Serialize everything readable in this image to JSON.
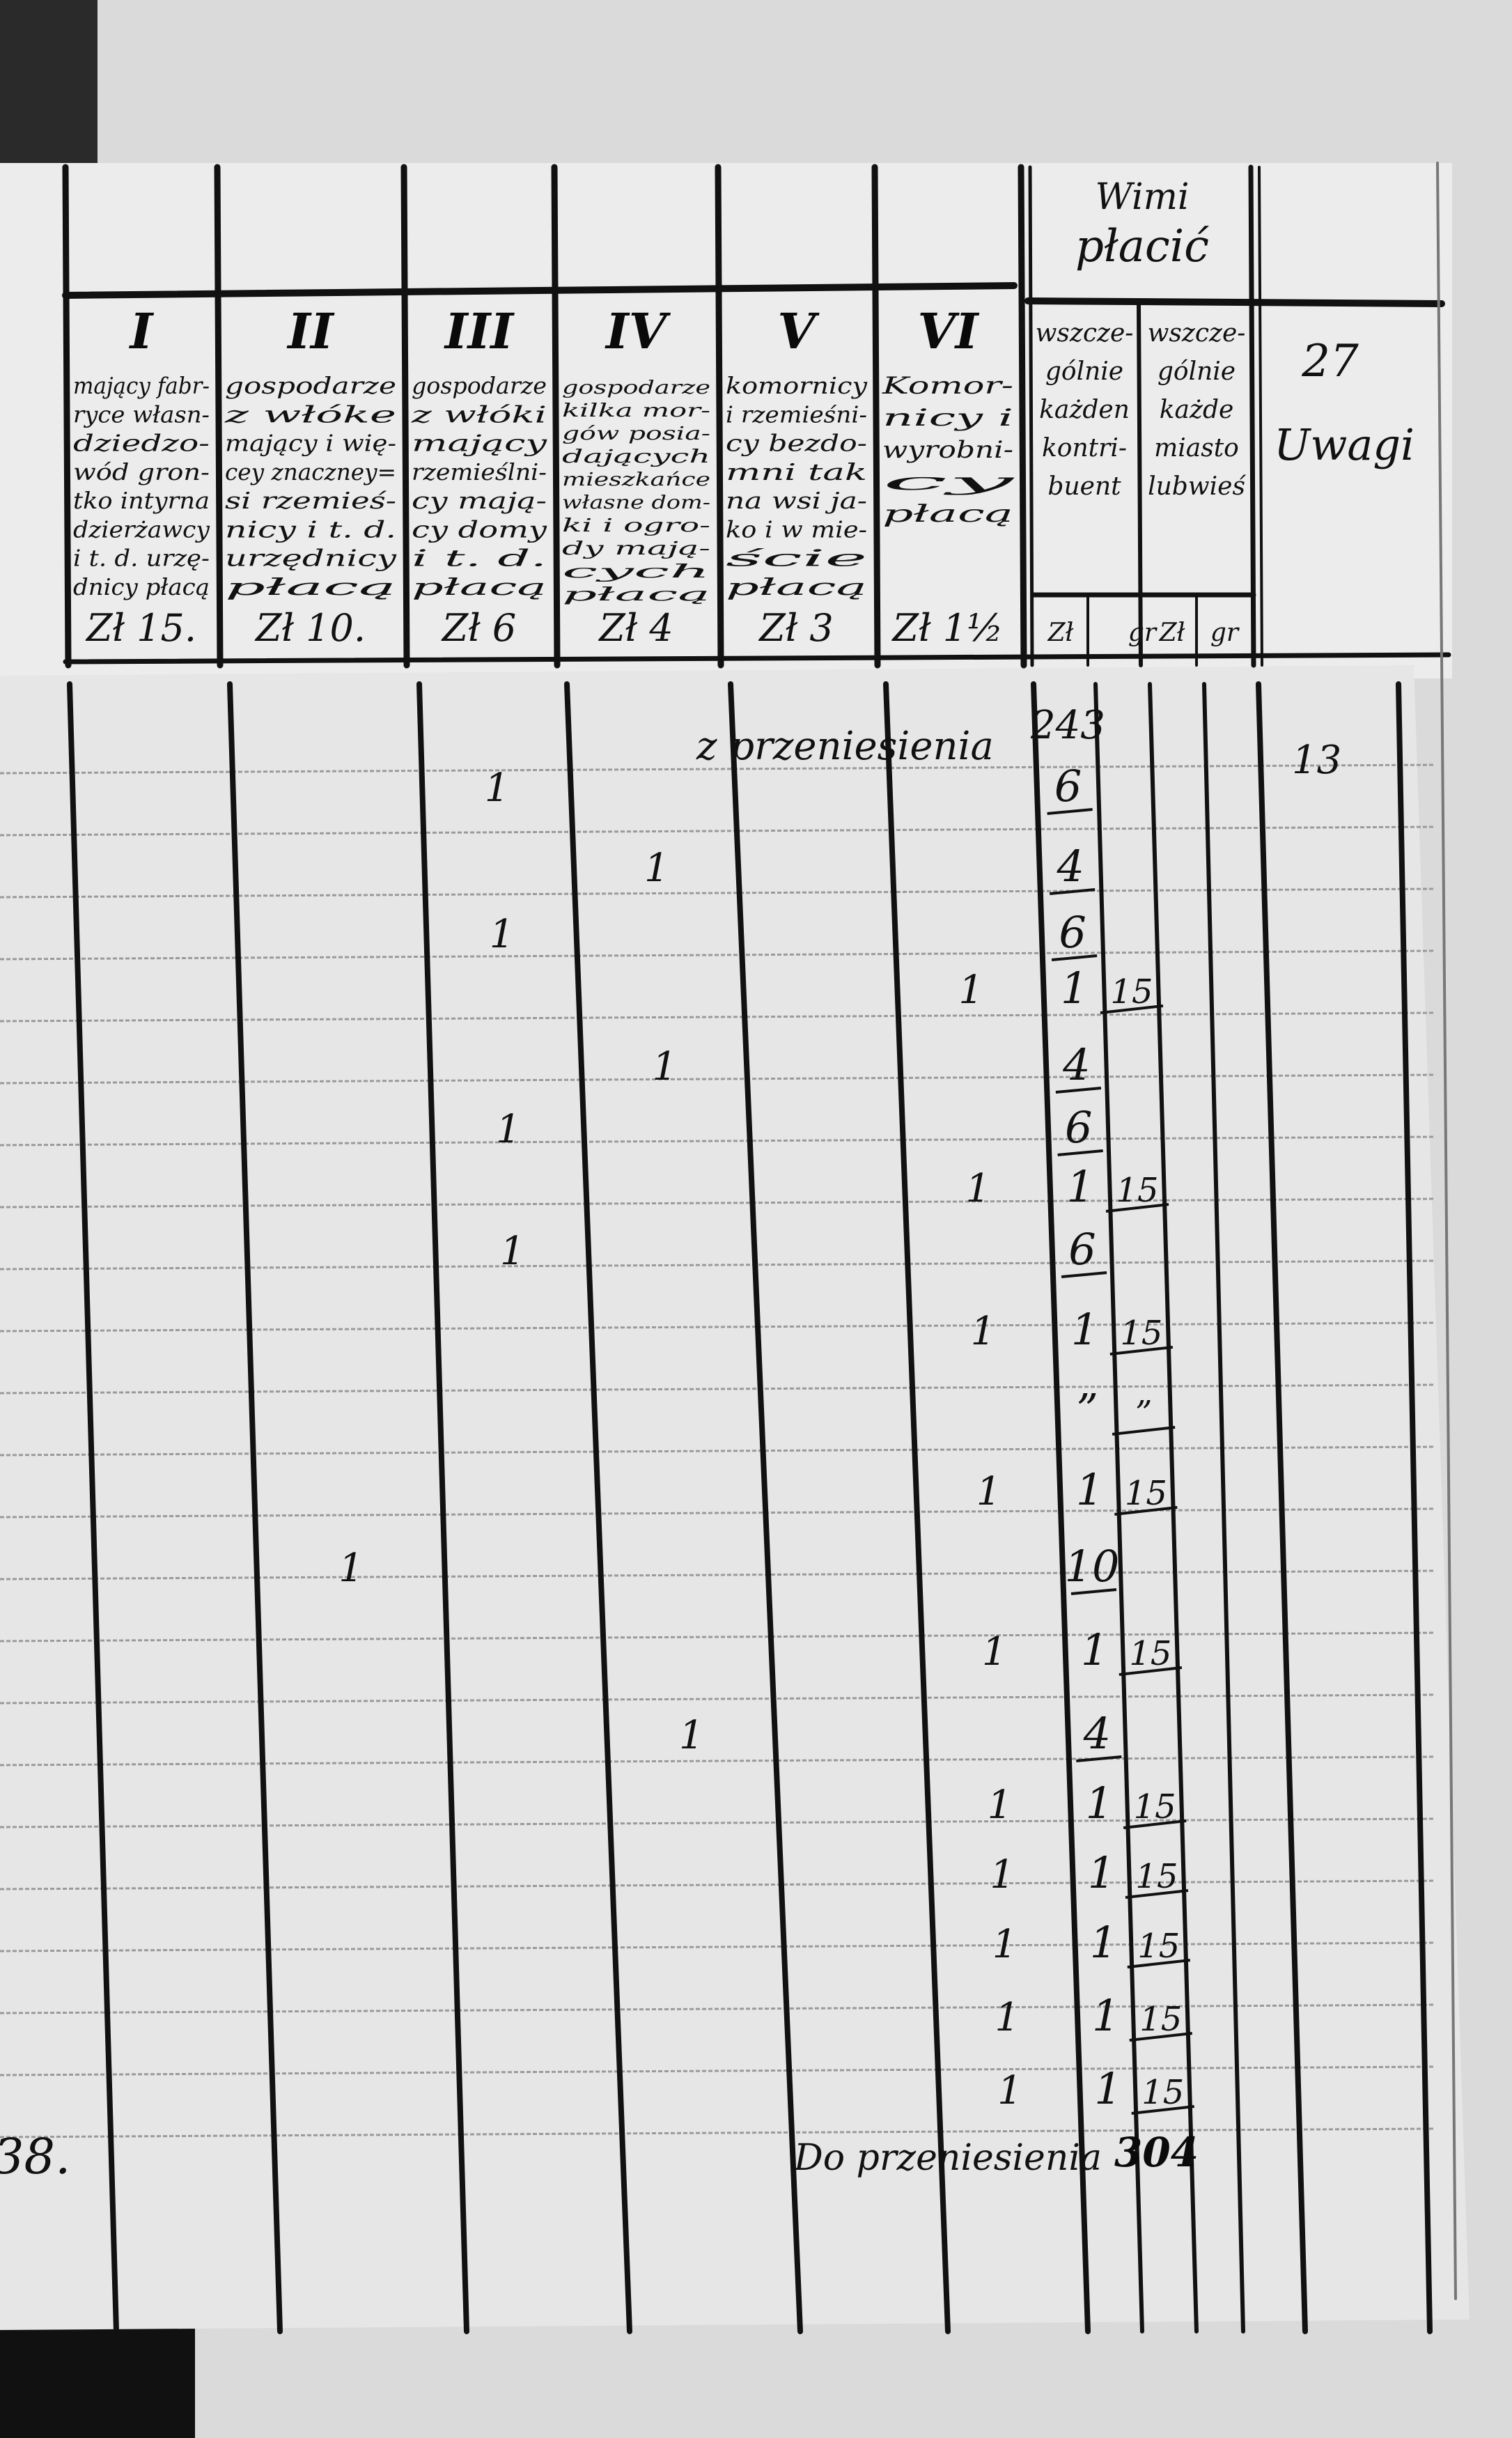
{
  "header": {
    "columns": [
      {
        "numeral": "I",
        "lines": [
          "mający fabr-",
          "ryce własn-",
          "dziedzo-",
          "wód gron-",
          "tko intyrna",
          "dzierżawcy",
          "i t. d. urzę-",
          "dnicy płacą"
        ],
        "rate": "Zł 15."
      },
      {
        "numeral": "II",
        "lines": [
          "gospodarze",
          "z włóke",
          "mający i wię-",
          "cey znaczney=",
          "si rzemieś-",
          "nicy i t. d.",
          "urzędnicy",
          "płacą"
        ],
        "rate": "Zł 10."
      },
      {
        "numeral": "III",
        "lines": [
          "gospodarze",
          "z włóki",
          "mający",
          "rzemieślni-",
          "cy mają-",
          "cy domy",
          "i t. d.",
          "płacą"
        ],
        "rate": "Zł 6"
      },
      {
        "numeral": "IV",
        "lines": [
          "gospodarze",
          "kilka mor-",
          "gów posia-",
          "dających",
          "mieszkańce",
          "własne dom-",
          "ki i ogro-",
          "dy mają-",
          "cych",
          "płacą"
        ],
        "rate": "Zł 4"
      },
      {
        "numeral": "V",
        "lines": [
          "komornicy",
          "i rzemieśni-",
          "cy bezdo-",
          "mni tak",
          "na wsi ja-",
          "ko i w mie-",
          "ście",
          "płacą"
        ],
        "rate": "Zł 3"
      },
      {
        "numeral": "VI",
        "lines": [
          "Komor-",
          "nicy i",
          "wyrobni-",
          "cy",
          "płacą"
        ],
        "rate": "Zł 1½"
      }
    ],
    "group_title": [
      "Wimi",
      "płacić"
    ],
    "sub_columns": [
      {
        "lines": [
          "wszcze-",
          "gólnie",
          "każden",
          "kontri-",
          "buent"
        ]
      },
      {
        "lines": [
          "wszcze-",
          "gólnie",
          "każde",
          "miasto",
          "lubwieś"
        ]
      }
    ],
    "currency_labels": [
      "Zł",
      "gr",
      "Zł",
      "gr"
    ],
    "page_number": "27",
    "remarks_label": "Uwagi"
  },
  "body": {
    "carried_in_label": "z przeniesienia",
    "carried_in_value": "243",
    "remark_top": "13",
    "rows": [
      {
        "col": "III",
        "count": "1",
        "zl": "6",
        "gr": ""
      },
      {
        "col": "IV",
        "count": "1",
        "zl": "4",
        "gr": ""
      },
      {
        "col": "III",
        "count": "1",
        "zl": "6",
        "gr": ""
      },
      {
        "col": "VI",
        "count": "1",
        "zl": "1",
        "gr": "15"
      },
      {
        "col": "IV",
        "count": "1",
        "zl": "4",
        "gr": ""
      },
      {
        "col": "III",
        "count": "1",
        "zl": "6",
        "gr": ""
      },
      {
        "col": "VI",
        "count": "1",
        "zl": "1",
        "gr": "15"
      },
      {
        "col": "III",
        "count": "1",
        "zl": "6",
        "gr": ""
      },
      {
        "col": "VI",
        "count": "1",
        "zl": "1",
        "gr": "15"
      },
      {
        "col": "",
        "count": "",
        "zl": "”",
        "gr": "”"
      },
      {
        "col": "VI",
        "count": "1",
        "zl": "1",
        "gr": "15"
      },
      {
        "col": "II",
        "count": "1",
        "zl": "10",
        "gr": ""
      },
      {
        "col": "VI",
        "count": "1",
        "zl": "1",
        "gr": "15"
      },
      {
        "col": "IV",
        "count": "1",
        "zl": "4",
        "gr": ""
      },
      {
        "col": "VI",
        "count": "1",
        "zl": "1",
        "gr": "15"
      },
      {
        "col": "VI",
        "count": "1",
        "zl": "1",
        "gr": "15"
      },
      {
        "col": "VI",
        "count": "1",
        "zl": "1",
        "gr": "15"
      },
      {
        "col": "VI",
        "count": "1",
        "zl": "1",
        "gr": "15"
      },
      {
        "col": "VI",
        "count": "1",
        "zl": "1",
        "gr": "15"
      }
    ],
    "carried_out_label": "Do przeniesienia",
    "carried_out_value": "304",
    "left_page_fragment": "38."
  }
}
